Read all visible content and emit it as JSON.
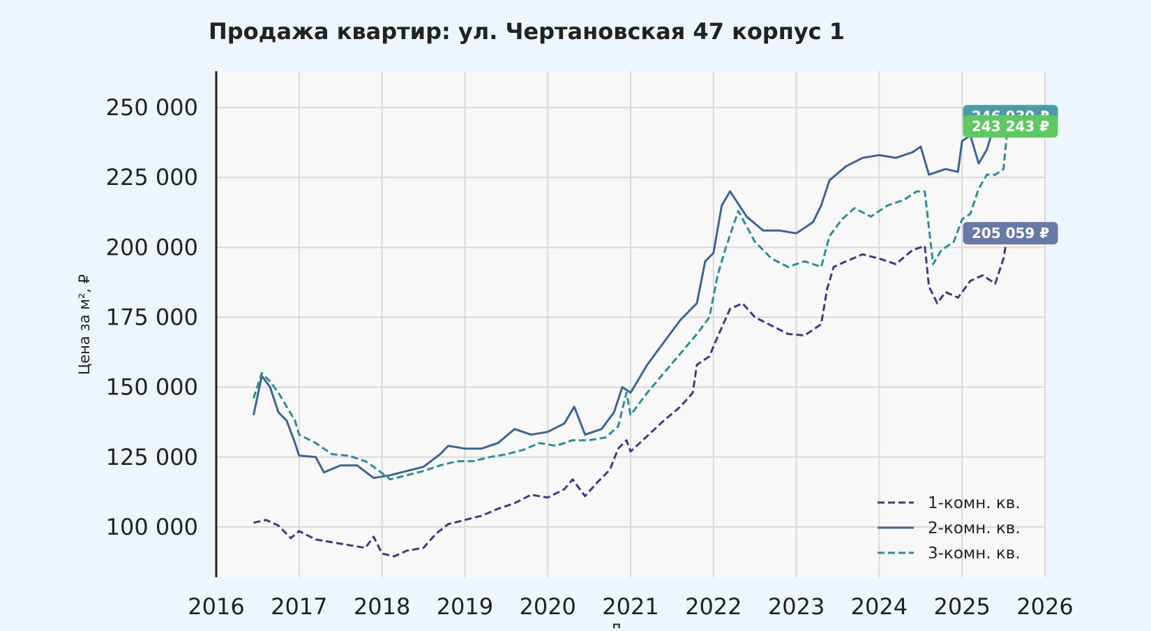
{
  "chart_data": {
    "type": "line",
    "title": "Продажа квартир: ул. Чертановская 47 корпус 1",
    "xlabel": "Д",
    "ylabel": "Цена за м², ₽",
    "xlim": [
      2016,
      2026
    ],
    "ylim": [
      82000,
      263000
    ],
    "x_ticks": [
      2016,
      2017,
      2018,
      2019,
      2020,
      2021,
      2022,
      2023,
      2024,
      2025,
      2026
    ],
    "y_ticks": [
      100000,
      125000,
      150000,
      175000,
      200000,
      225000,
      250000
    ],
    "y_tick_labels": [
      "100 000",
      "125 000",
      "150 000",
      "175 000",
      "200 000",
      "225 000",
      "250 000"
    ],
    "grid": true,
    "legend_position": "bottom-right",
    "series": [
      {
        "name": "1-комн. кв.",
        "color": "#453781",
        "dash": "dashed",
        "x": [
          2016.45,
          2016.6,
          2016.75,
          2016.9,
          2017.0,
          2017.2,
          2017.4,
          2017.6,
          2017.8,
          2017.9,
          2018.0,
          2018.15,
          2018.3,
          2018.5,
          2018.65,
          2018.8,
          2019.0,
          2019.2,
          2019.4,
          2019.6,
          2019.8,
          2020.0,
          2020.2,
          2020.3,
          2020.45,
          2020.6,
          2020.75,
          2020.85,
          2020.95,
          2021.0,
          2021.2,
          2021.4,
          2021.6,
          2021.75,
          2021.8,
          2021.95,
          2022.05,
          2022.2,
          2022.35,
          2022.5,
          2022.7,
          2022.9,
          2023.1,
          2023.3,
          2023.37,
          2023.45,
          2023.6,
          2023.8,
          2024.0,
          2024.2,
          2024.4,
          2024.55,
          2024.6,
          2024.7,
          2024.8,
          2024.95,
          2025.1,
          2025.25,
          2025.4,
          2025.5,
          2025.55
        ],
        "values": [
          101500,
          102500,
          100500,
          96000,
          98500,
          95500,
          94500,
          93500,
          92500,
          96500,
          90500,
          89500,
          91500,
          92500,
          97500,
          101000,
          102500,
          104000,
          106500,
          108500,
          111500,
          110500,
          113500,
          117000,
          111000,
          116000,
          120500,
          128000,
          131000,
          127000,
          132500,
          138000,
          143000,
          148000,
          158000,
          161000,
          168000,
          178000,
          180000,
          175000,
          172000,
          169000,
          168500,
          172500,
          185000,
          193000,
          195000,
          197500,
          196000,
          194000,
          199000,
          200500,
          186000,
          180000,
          184000,
          182000,
          188000,
          190000,
          187000,
          196000,
          205059
        ]
      },
      {
        "name": "2-комн. кв.",
        "color": "#3d6494",
        "dash": "solid",
        "x": [
          2016.45,
          2016.55,
          2016.65,
          2016.75,
          2016.85,
          2016.95,
          2017.0,
          2017.2,
          2017.3,
          2017.5,
          2017.7,
          2017.9,
          2018.1,
          2018.3,
          2018.5,
          2018.7,
          2018.8,
          2019.0,
          2019.2,
          2019.4,
          2019.6,
          2019.8,
          2020.0,
          2020.2,
          2020.32,
          2020.45,
          2020.65,
          2020.8,
          2020.9,
          2021.0,
          2021.2,
          2021.4,
          2021.6,
          2021.8,
          2021.9,
          2022.0,
          2022.1,
          2022.2,
          2022.4,
          2022.6,
          2022.8,
          2023.0,
          2023.2,
          2023.3,
          2023.4,
          2023.6,
          2023.8,
          2024.0,
          2024.2,
          2024.4,
          2024.5,
          2024.6,
          2024.8,
          2024.95,
          2025.0,
          2025.1,
          2025.2,
          2025.3,
          2025.4,
          2025.5,
          2025.55
        ],
        "values": [
          140000,
          154000,
          150000,
          141000,
          138000,
          130000,
          125500,
          125000,
          119500,
          122000,
          122000,
          117500,
          118500,
          120000,
          121500,
          126000,
          129000,
          128000,
          128000,
          130000,
          135000,
          133000,
          134000,
          137000,
          143000,
          133000,
          135000,
          141000,
          150000,
          148000,
          158000,
          166000,
          174000,
          180000,
          195000,
          198000,
          215000,
          220000,
          211000,
          206000,
          206000,
          205000,
          209000,
          215000,
          224000,
          229000,
          232000,
          233000,
          232000,
          234000,
          236000,
          226000,
          228000,
          227000,
          238000,
          240000,
          230000,
          235000,
          245000,
          248000,
          246930
        ]
      },
      {
        "name": "3-комн. кв.",
        "color": "#2d8d94",
        "dash": "dashed",
        "x": [
          2016.45,
          2016.55,
          2016.65,
          2016.75,
          2016.85,
          2016.95,
          2017.0,
          2017.2,
          2017.4,
          2017.6,
          2017.8,
          2017.9,
          2018.1,
          2018.3,
          2018.5,
          2018.7,
          2018.9,
          2019.1,
          2019.3,
          2019.5,
          2019.7,
          2019.9,
          2020.1,
          2020.3,
          2020.5,
          2020.7,
          2020.85,
          2020.95,
          2021.0,
          2021.2,
          2021.4,
          2021.6,
          2021.8,
          2021.95,
          2022.05,
          2022.15,
          2022.3,
          2022.5,
          2022.7,
          2022.9,
          2023.1,
          2023.3,
          2023.4,
          2023.55,
          2023.7,
          2023.9,
          2024.1,
          2024.3,
          2024.45,
          2024.55,
          2024.65,
          2024.75,
          2024.9,
          2025.0,
          2025.1,
          2025.2,
          2025.3,
          2025.4,
          2025.5,
          2025.55
        ],
        "values": [
          146000,
          155000,
          152000,
          148000,
          143000,
          138000,
          133000,
          130000,
          126000,
          125500,
          123500,
          121500,
          117000,
          118500,
          120000,
          122000,
          123500,
          123500,
          125000,
          126000,
          127500,
          130000,
          129000,
          131000,
          131000,
          132000,
          136000,
          148000,
          140000,
          148000,
          155000,
          162000,
          169000,
          175000,
          190000,
          200000,
          213000,
          202000,
          196000,
          193000,
          195000,
          193000,
          204000,
          210000,
          214000,
          211000,
          215000,
          217000,
          220000,
          220000,
          194000,
          199000,
          202000,
          210000,
          212000,
          221000,
          226000,
          226000,
          228000,
          243243
        ]
      }
    ],
    "end_labels": [
      {
        "text": "246 930 ₽",
        "value": 246930,
        "color": "#4c9aa8"
      },
      {
        "text": "243 243 ₽",
        "value": 243243,
        "color": "#5ec962"
      },
      {
        "text": "205 059 ₽",
        "value": 205059,
        "color": "#6878a8"
      }
    ]
  }
}
